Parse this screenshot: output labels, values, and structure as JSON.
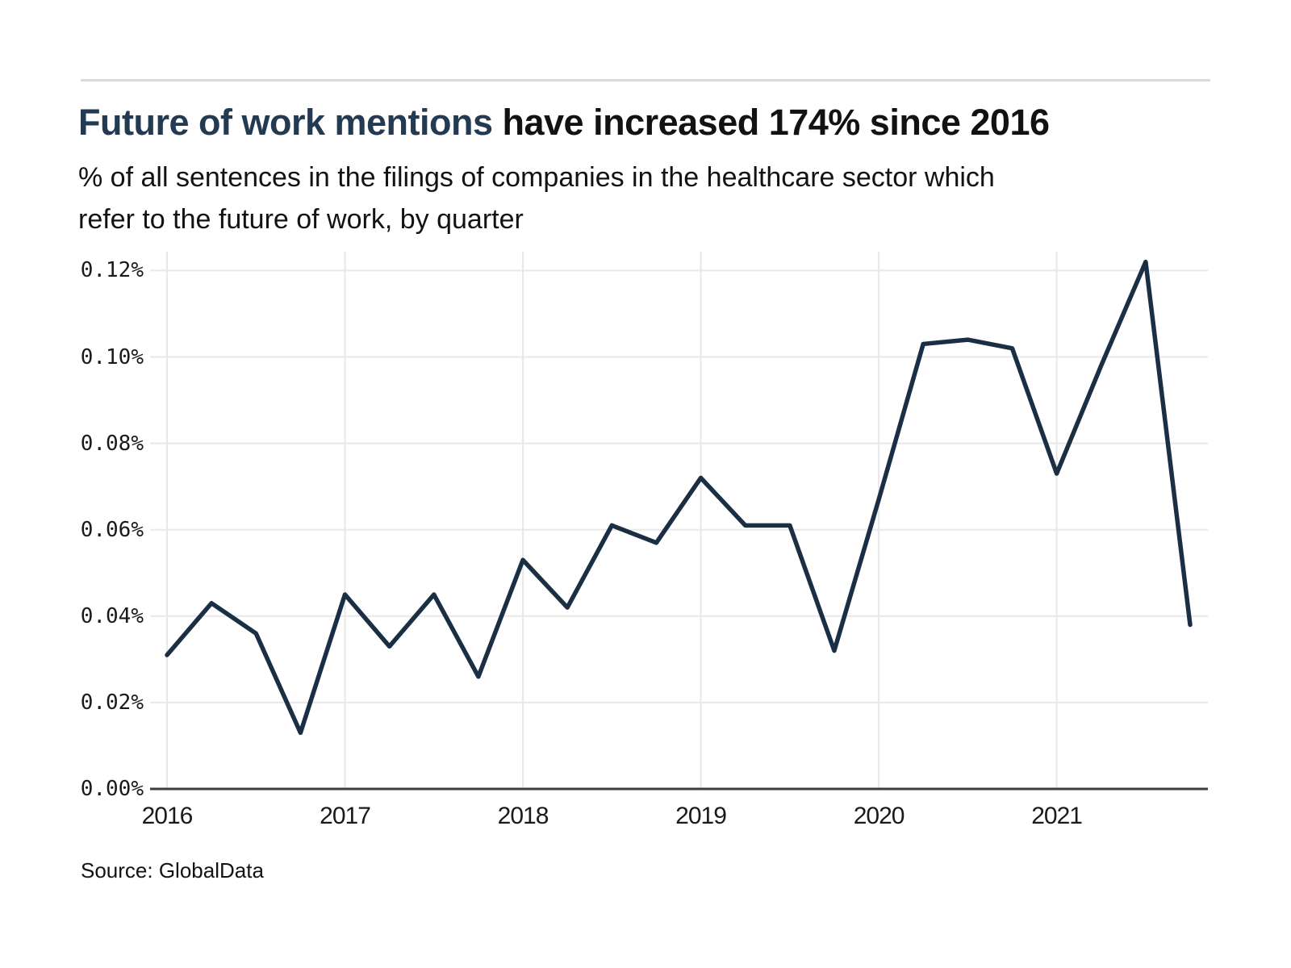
{
  "header": {
    "title_highlight": "Future of work mentions",
    "title_rest": " have increased 174% since 2016",
    "subtitle_lines": [
      "% of all sentences in the filings of companies in the healthcare sector which",
      "refer to the future of work, by quarter"
    ]
  },
  "footer": {
    "source": "Source: GlobalData"
  },
  "chart_data": {
    "type": "line",
    "title": "Future of work mentions have increased 174% since 2016",
    "subtitle": "% of all sentences in the filings of companies in the healthcare sector which refer to the future of work, by quarter",
    "x": [
      "2016 Q1",
      "2016 Q2",
      "2016 Q3",
      "2016 Q4",
      "2017 Q1",
      "2017 Q2",
      "2017 Q3",
      "2017 Q4",
      "2018 Q1",
      "2018 Q2",
      "2018 Q3",
      "2018 Q4",
      "2019 Q1",
      "2019 Q2",
      "2019 Q3",
      "2019 Q4",
      "2020 Q1",
      "2020 Q2",
      "2020 Q3",
      "2020 Q4",
      "2021 Q1",
      "2021 Q2",
      "2021 Q3",
      "2021 Q4"
    ],
    "values": [
      0.031,
      0.043,
      0.036,
      0.013,
      0.045,
      0.033,
      0.045,
      0.026,
      0.053,
      0.042,
      0.061,
      0.057,
      0.072,
      0.061,
      0.061,
      0.032,
      0.067,
      0.103,
      0.104,
      0.102,
      0.073,
      0.098,
      0.122,
      0.038
    ],
    "x_tick_labels": [
      "2016",
      "2017",
      "2018",
      "2019",
      "2020",
      "2021"
    ],
    "y_tick_labels": [
      "0.00%",
      "0.02%",
      "0.04%",
      "0.06%",
      "0.08%",
      "0.10%",
      "0.12%"
    ],
    "y_tick_values": [
      0.0,
      0.02,
      0.04,
      0.06,
      0.08,
      0.1,
      0.12
    ],
    "ylim": [
      0,
      0.1256
    ],
    "xlabel": "",
    "ylabel": "",
    "grid": true,
    "legend": "none",
    "line_color": "#1b2f44",
    "grid_color": "#e8e8e8",
    "axis_color": "#3d3d3d",
    "title_highlight_color": "#233a52",
    "source": "Source: GlobalData"
  }
}
